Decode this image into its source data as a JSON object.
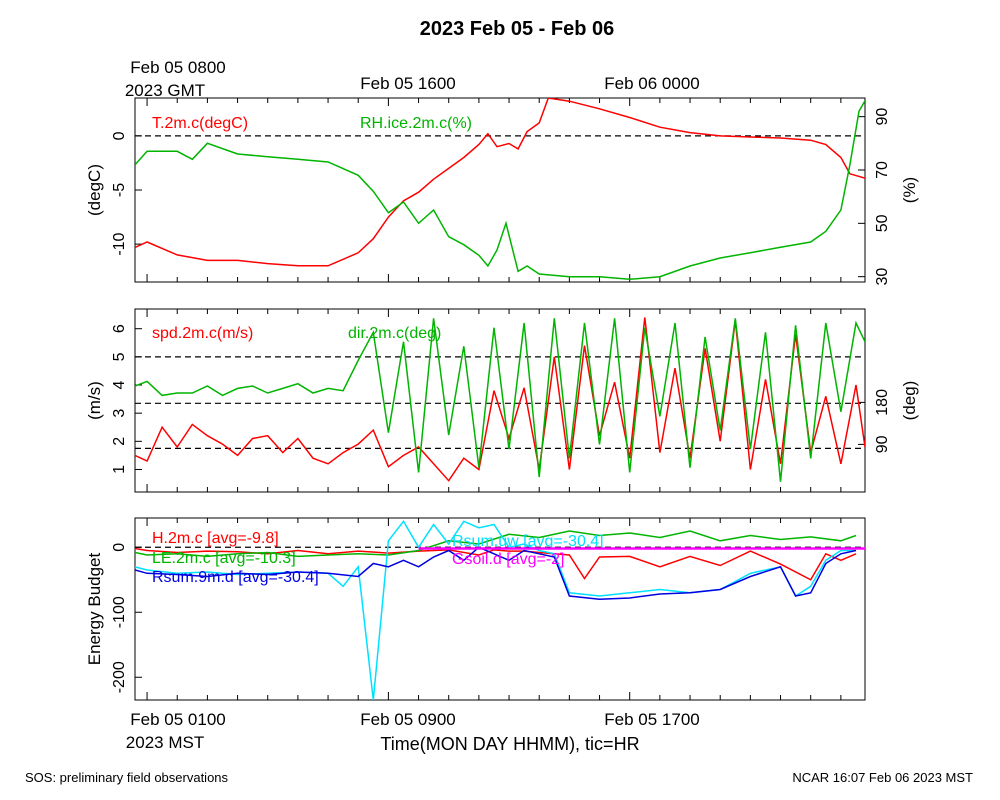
{
  "title": "2023 Feb 05 - Feb 06",
  "colors": {
    "red": "#ff0000",
    "green": "#00b400",
    "cyan": "#00e0ff",
    "blue": "#0000e0",
    "magenta": "#ff00ff",
    "black": "#000000"
  },
  "top_axis": {
    "start_label_1": "Feb 05 0800",
    "start_label_2": "2023 GMT",
    "label_mid": "Feb 05 1600",
    "label_right": "Feb 06 0000"
  },
  "bottom_axis": {
    "start_label_1": "Feb 05 0100",
    "start_label_2": "2023 MST",
    "label_mid": "Feb 05 0900",
    "label_right": "Feb 05 1700",
    "title": "Time(MON DAY HHMM), tic=HR"
  },
  "footer": {
    "left": "SOS: preliminary field observations",
    "right": "NCAR 16:07 Feb 06 2023 MST"
  },
  "chart_data": [
    {
      "type": "line",
      "panel": "temperature-humidity",
      "x_unit": "hours since Feb 05 0000 MST",
      "xlim": [
        0.6,
        24.8
      ],
      "ylabel": "(degC)",
      "ylim": [
        -13.5,
        3.5
      ],
      "yticks": [
        "-10",
        "-5",
        "0"
      ],
      "ylabel_right": "(%)",
      "ylim_right": [
        28,
        97
      ],
      "yticks_right": [
        "30",
        "50",
        "70",
        "90"
      ],
      "reference_lines": [
        0
      ],
      "series": [
        {
          "name": "T.2m.c(degC)",
          "axis": "left",
          "color": "red",
          "x": [
            0.6,
            1,
            2,
            3,
            4,
            5,
            6,
            7,
            8,
            8.5,
            9,
            9.5,
            10,
            10.5,
            11,
            11.5,
            12,
            12.3,
            12.6,
            13,
            13.3,
            13.6,
            14,
            14.3,
            15,
            16,
            17,
            18,
            19,
            20,
            21,
            22,
            23,
            23.5,
            24,
            24.3,
            24.8
          ],
          "y": [
            -10.3,
            -9.8,
            -11,
            -11.5,
            -11.5,
            -11.8,
            -12,
            -12,
            -10.8,
            -9.5,
            -7.5,
            -6,
            -5.2,
            -4,
            -3,
            -2,
            -0.8,
            0.2,
            -1,
            -0.7,
            -1.2,
            0.4,
            1.2,
            3.5,
            3.2,
            2.5,
            1.7,
            0.8,
            0.3,
            0,
            -0.1,
            -0.2,
            -0.4,
            -0.8,
            -2,
            -3.5,
            -3.9
          ]
        },
        {
          "name": "RH.ice.2m.c(%)",
          "axis": "right",
          "color": "green",
          "x": [
            0.6,
            1,
            2,
            2.5,
            3,
            4,
            5,
            6,
            7,
            8,
            8.5,
            9,
            9.5,
            10,
            10.5,
            11,
            11.5,
            12,
            12.3,
            12.6,
            12.9,
            13.3,
            13.6,
            14,
            15,
            16,
            17,
            18,
            19,
            20,
            21,
            22,
            23,
            23.5,
            24,
            24.3,
            24.6,
            24.8
          ],
          "y": [
            72,
            77,
            77,
            74,
            80,
            76,
            75,
            74,
            73,
            68,
            62,
            54,
            58,
            50,
            55,
            45,
            42,
            38,
            34,
            40,
            50,
            32,
            34,
            31,
            30,
            30,
            29,
            30,
            34,
            37,
            39,
            41,
            43,
            47,
            55,
            72,
            92,
            96
          ]
        }
      ]
    },
    {
      "type": "line",
      "panel": "wind",
      "x_unit": "hours since Feb 05 0000 MST",
      "xlim": [
        0.6,
        24.8
      ],
      "ylabel": "(m/s)",
      "ylim": [
        0.2,
        6.7
      ],
      "yticks": [
        "1",
        "2",
        "3",
        "4",
        "5",
        "6"
      ],
      "ylabel_right": "(deg)",
      "ylim_right": [
        -12,
        380
      ],
      "yticks_right": [
        "90",
        "180"
      ],
      "reference_lines": [
        1.75,
        3.35,
        5
      ],
      "series": [
        {
          "name": "spd.2m.c(m/s)",
          "axis": "left",
          "color": "red",
          "x": [
            0.6,
            1,
            1.5,
            2,
            2.5,
            3,
            3.5,
            4,
            4.5,
            5,
            5.5,
            6,
            6.5,
            7,
            7.5,
            8,
            8.5,
            9,
            9.5,
            10,
            10.5,
            11,
            11.5,
            12,
            12.5,
            13,
            13.5,
            14,
            14.5,
            15,
            15.5,
            16,
            16.5,
            17,
            17.5,
            18,
            18.5,
            19,
            19.5,
            20,
            20.5,
            21,
            21.5,
            22,
            22.5,
            23,
            23.5,
            24,
            24.5,
            24.8
          ],
          "y": [
            1.5,
            1.3,
            2.5,
            1.8,
            2.6,
            2.2,
            1.9,
            1.5,
            2.1,
            2.2,
            1.6,
            2.1,
            1.4,
            1.2,
            1.6,
            1.9,
            2.4,
            1.1,
            1.5,
            1.8,
            1.2,
            0.6,
            1.4,
            1.0,
            3.8,
            2.1,
            3.9,
            1.0,
            5.0,
            1.0,
            5.4,
            2.2,
            4.1,
            1.4,
            6.4,
            1.6,
            4.6,
            1.4,
            5.3,
            2.0,
            6.3,
            1.0,
            4.2,
            1.2,
            5.8,
            1.6,
            3.6,
            1.2,
            4.0,
            1.8
          ]
        },
        {
          "name": "dir.2m.c(deg)",
          "axis": "right",
          "color": "green",
          "x": [
            0.6,
            1,
            1.5,
            2,
            2.5,
            3,
            3.5,
            4,
            4.5,
            5,
            5.5,
            6,
            6.5,
            7,
            7.5,
            8,
            8.5,
            9,
            9.5,
            10,
            10.5,
            11,
            11.5,
            12,
            12.5,
            13,
            13.5,
            14,
            14.5,
            15,
            15.5,
            16,
            16.5,
            17,
            17.5,
            18,
            18.5,
            19,
            19.5,
            20,
            20.5,
            21,
            21.5,
            22,
            22.5,
            23,
            23.5,
            24,
            24.5,
            24.8
          ],
          "y": [
            215,
            225,
            195,
            200,
            200,
            215,
            195,
            210,
            215,
            200,
            210,
            220,
            200,
            210,
            205,
            270,
            330,
            115,
            310,
            30,
            360,
            110,
            300,
            40,
            340,
            80,
            350,
            20,
            360,
            60,
            350,
            90,
            360,
            30,
            340,
            150,
            350,
            40,
            320,
            120,
            360,
            80,
            330,
            10,
            345,
            60,
            350,
            160,
            350,
            310
          ]
        }
      ]
    },
    {
      "type": "line",
      "panel": "energy-budget",
      "x_unit": "hours since Feb 05 0000 MST",
      "xlim": [
        0.6,
        24.8
      ],
      "ylabel": "Energy Budget",
      "ylim": [
        -235,
        45
      ],
      "yticks": [
        "-200",
        "-100",
        "0"
      ],
      "reference_lines": [
        0
      ],
      "series": [
        {
          "name": "H.2m.c [avg=-9.8]",
          "color": "red",
          "x": [
            0.6,
            1,
            2,
            3,
            4,
            5,
            6,
            7,
            8,
            9,
            10,
            11,
            12,
            12.5,
            13,
            13.5,
            14,
            14.5,
            15,
            15.5,
            16,
            17,
            18,
            19,
            20,
            21,
            22,
            23,
            23.5,
            24,
            24.5
          ],
          "y": [
            -2,
            -5,
            -8,
            -6,
            -7,
            -10,
            -5,
            -10,
            -6,
            -9,
            -6,
            -4,
            -12,
            -4,
            -6,
            -6,
            -8,
            -10,
            -12,
            -48,
            -15,
            -14,
            -30,
            -14,
            -28,
            -6,
            -26,
            -50,
            -10,
            -20,
            -10
          ]
        },
        {
          "name": "LE.2m.c [avg=-10.3]",
          "color": "green",
          "x": [
            0.6,
            1,
            2,
            3,
            4,
            5,
            6,
            7,
            8,
            9,
            10,
            11,
            12,
            13,
            14,
            15,
            16,
            17,
            18,
            19,
            20,
            21,
            22,
            23,
            24,
            24.5
          ],
          "y": [
            -8,
            -12,
            -10,
            -14,
            -10,
            -8,
            -14,
            -12,
            -10,
            -12,
            -5,
            10,
            5,
            20,
            15,
            25,
            18,
            22,
            15,
            25,
            10,
            18,
            12,
            16,
            10,
            18
          ]
        },
        {
          "name": "Rsum.uw [avg=-30.4]",
          "color": "cyan",
          "x": [
            0.6,
            1,
            2,
            3,
            4,
            5,
            6,
            7,
            7.5,
            8,
            8.5,
            9,
            9.5,
            10,
            10.5,
            11,
            11.5,
            12,
            12.5,
            13,
            13.5,
            14,
            14.5,
            15,
            16,
            17,
            18,
            19,
            20,
            21,
            22,
            22.5,
            23,
            23.5,
            24,
            24.5
          ],
          "y": [
            -30,
            -35,
            -40,
            -38,
            -42,
            -40,
            -38,
            -40,
            -60,
            -30,
            -235,
            10,
            40,
            0,
            35,
            5,
            40,
            30,
            35,
            0,
            5,
            -5,
            -10,
            -70,
            -75,
            -70,
            -65,
            -70,
            -65,
            -40,
            -30,
            -75,
            -60,
            -20,
            -5,
            -5
          ]
        },
        {
          "name": "Rsum.9m.d [avg=-30.4]",
          "color": "blue",
          "x": [
            0.6,
            1,
            2,
            3,
            4,
            5,
            6,
            7,
            8,
            8.5,
            9,
            9.5,
            10,
            10.5,
            11,
            11.5,
            12,
            12.5,
            13,
            13.5,
            14,
            14.5,
            15,
            16,
            17,
            18,
            19,
            20,
            21,
            22,
            22.5,
            23,
            23.5,
            24,
            24.5
          ],
          "y": [
            -35,
            -40,
            -42,
            -45,
            -40,
            -42,
            -38,
            -40,
            -45,
            -25,
            -30,
            -20,
            -30,
            -15,
            -5,
            -20,
            0,
            -10,
            -20,
            -5,
            -10,
            -15,
            -75,
            -80,
            -78,
            -72,
            -70,
            -65,
            -45,
            -30,
            -75,
            -70,
            -25,
            -10,
            -5
          ]
        },
        {
          "name": "Gsoil.d [avg=-2]",
          "color": "magenta",
          "x": [
            10,
            24.8
          ],
          "y": [
            -2,
            -2
          ]
        }
      ]
    }
  ]
}
